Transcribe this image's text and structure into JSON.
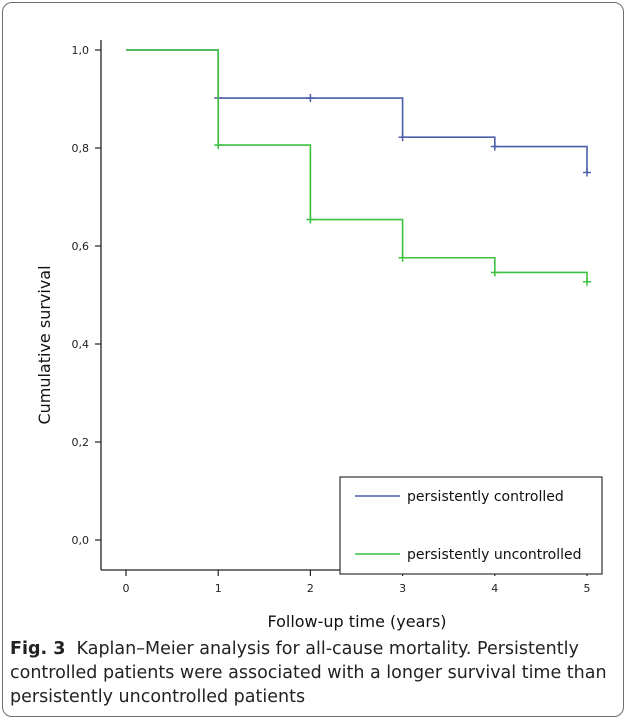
{
  "chart_data": {
    "type": "line",
    "subtype": "kaplan-meier-step",
    "xlabel": "Follow-up time (years)",
    "ylabel": "Cumulative survival",
    "xlim": [
      0,
      5
    ],
    "ylim": [
      0,
      1
    ],
    "x_ticks": [
      "0",
      "1",
      "2",
      "3",
      "4",
      "5"
    ],
    "y_ticks": [
      "0,0",
      "0,2",
      "0,4",
      "0,6",
      "0,8",
      "1,0"
    ],
    "grid": false,
    "legend_position": "bottom-right",
    "series": [
      {
        "name": "persistently controlled",
        "color": "#4a5fa8",
        "steps": [
          [
            0,
            1.0
          ],
          [
            1,
            0.902
          ],
          [
            3,
            0.822
          ],
          [
            4,
            0.803
          ],
          [
            5,
            0.75
          ]
        ],
        "censored": [
          [
            1,
            0.902
          ],
          [
            2,
            0.902
          ],
          [
            3,
            0.822
          ],
          [
            4,
            0.803
          ],
          [
            5,
            0.75
          ]
        ]
      },
      {
        "name": "persistently uncontrolled",
        "color": "#3cc040",
        "steps": [
          [
            0,
            1.0
          ],
          [
            1,
            0.806
          ],
          [
            2,
            0.654
          ],
          [
            3,
            0.576
          ],
          [
            4,
            0.546
          ],
          [
            5,
            0.527
          ]
        ],
        "censored": [
          [
            1,
            0.806
          ],
          [
            2,
            0.654
          ],
          [
            3,
            0.576
          ],
          [
            4,
            0.546
          ],
          [
            5,
            0.527
          ]
        ]
      }
    ]
  },
  "caption": {
    "label": "Fig. 3",
    "text": "Kaplan–Meier analysis for all-cause mortality. Persistently controlled patients were associated with a longer survival time than persistently uncontrolled patients"
  }
}
